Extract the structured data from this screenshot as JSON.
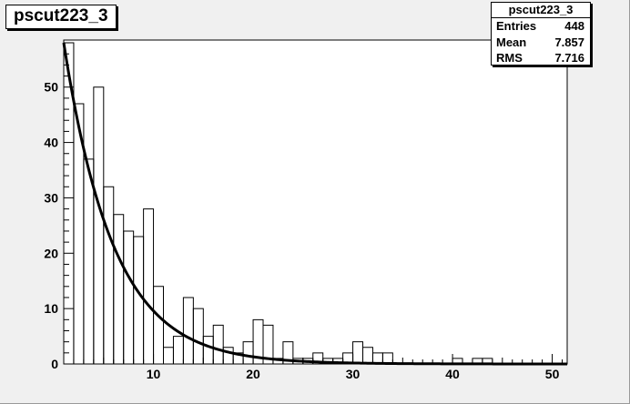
{
  "chart_data": {
    "type": "histogram",
    "title": "pscut223_3",
    "stats": {
      "name": "pscut223_3",
      "rows": [
        {
          "label": "Entries",
          "value": "448"
        },
        {
          "label": "Mean",
          "value": "7.857"
        },
        {
          "label": "RMS",
          "value": "7.716"
        }
      ]
    },
    "xlim": [
      1,
      51.5
    ],
    "ylim": [
      0,
      58.5
    ],
    "x_ticks": [
      10,
      20,
      30,
      40,
      50
    ],
    "y_ticks": [
      10,
      20,
      30,
      40,
      50
    ],
    "bin_edges_start": 1,
    "bin_width": 1,
    "counts": [
      58,
      47,
      37,
      50,
      32,
      27,
      24,
      23,
      28,
      14,
      3,
      5,
      12,
      10,
      5,
      7,
      3,
      2,
      4,
      8,
      7,
      1,
      4,
      1,
      1,
      2,
      1,
      1,
      2,
      4,
      3,
      2,
      2,
      0,
      0,
      0,
      0,
      0,
      0,
      1,
      0,
      1,
      1,
      0,
      0,
      0,
      0,
      0,
      0,
      0
    ],
    "fit": {
      "type": "exponential",
      "amplitude": 58,
      "rate": 0.2,
      "x_start": 1,
      "x_end": 51.5
    },
    "grid": false
  }
}
